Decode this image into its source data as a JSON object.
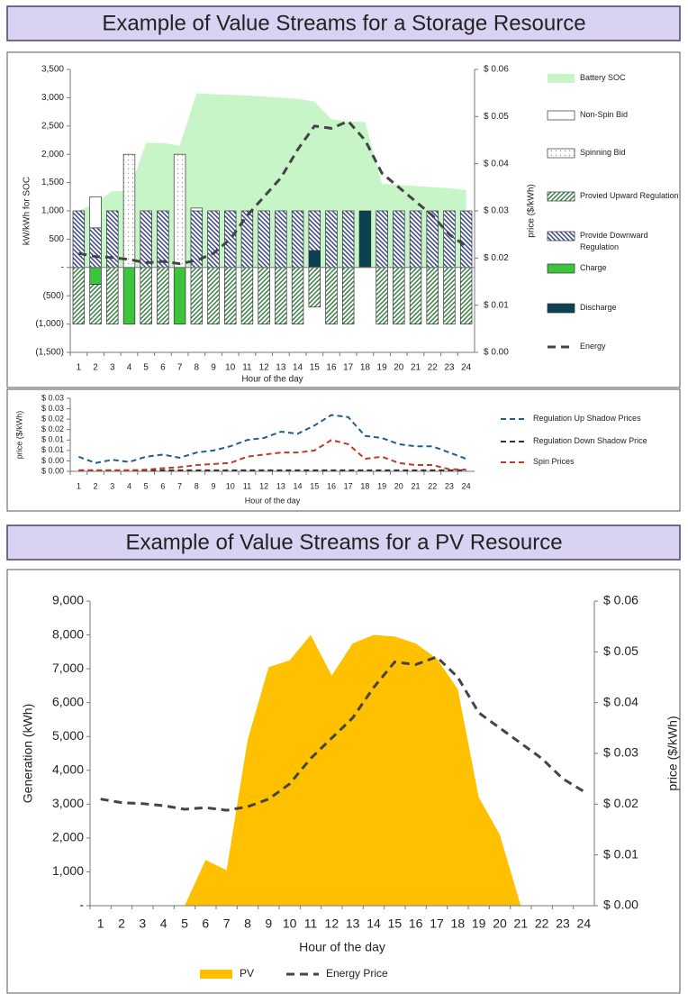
{
  "headers": [
    "Example of Value Streams for a Storage Resource",
    "Example of Value Streams for a PV Resource"
  ],
  "chart_data": [
    {
      "type": "bar",
      "stacked": true,
      "categories": [
        1,
        2,
        3,
        4,
        5,
        6,
        7,
        8,
        9,
        10,
        11,
        12,
        13,
        14,
        15,
        16,
        17,
        18,
        19,
        20,
        21,
        22,
        23,
        24
      ],
      "xlabel": "Hour of the day",
      "ylabel": "kW/kWh for SOC",
      "y2label": "price ($/kWh)",
      "legend": "right",
      "ylim": [
        -1500,
        3500
      ],
      "yticks": [
        {
          "value": -1500,
          "label": "(1,500)"
        },
        {
          "value": -1000,
          "label": "(1,000)"
        },
        {
          "value": -500,
          "label": "(500)"
        },
        {
          "value": 0,
          "label": "-"
        },
        500,
        {
          "value": 1000,
          "label": "1,000"
        },
        {
          "value": 1500,
          "label": "1,500"
        },
        {
          "value": 2000,
          "label": "2,000"
        },
        {
          "value": 2500,
          "label": "2,500"
        },
        {
          "value": 3000,
          "label": "3,000"
        },
        {
          "value": 3500,
          "label": "3,500"
        }
      ],
      "y2lim": [
        0,
        0.06
      ],
      "y2ticks": [
        {
          "value": 0,
          "label": "$ 0.00"
        },
        {
          "value": 0.01,
          "label": "$ 0.01"
        },
        {
          "value": 0.02,
          "label": "$ 0.02"
        },
        {
          "value": 0.03,
          "label": "$ 0.03"
        },
        {
          "value": 0.04,
          "label": "$ 0.04"
        },
        {
          "value": 0.05,
          "label": "$ 0.05"
        },
        {
          "value": 0.06,
          "label": "$ 0.06"
        }
      ],
      "series": [
        {
          "name": "Battery SOC",
          "type": "area",
          "fill": "solid",
          "color": "#c8f5c8",
          "values": [
            1000,
            1150,
            1350,
            1350,
            2200,
            2200,
            2150,
            3080,
            3060,
            3050,
            3040,
            3020,
            3000,
            2980,
            2930,
            2620,
            2580,
            2570,
            1480,
            1460,
            1440,
            1420,
            1400,
            1370
          ]
        },
        {
          "name": "Non-Spin Bid",
          "type": "bar",
          "fill": "solid",
          "color": "#ffffff",
          "values": [
            0,
            550,
            0,
            0,
            0,
            0,
            0,
            50,
            0,
            0,
            0,
            0,
            0,
            0,
            0,
            0,
            0,
            0,
            0,
            0,
            0,
            0,
            0,
            0
          ]
        },
        {
          "name": "Spinning Bid",
          "type": "bar",
          "fill": "dots",
          "color": "#9a9a9a",
          "values": [
            0,
            0,
            0,
            2000,
            0,
            0,
            2000,
            0,
            0,
            0,
            0,
            0,
            0,
            0,
            0,
            0,
            0,
            0,
            0,
            0,
            0,
            0,
            0,
            0
          ]
        },
        {
          "name": "Provied Upward Regulation",
          "type": "bar",
          "fill": "hatch-right",
          "color": "#2e7d3a",
          "values": [
            -1000,
            -700,
            -1000,
            0,
            -1000,
            -1000,
            0,
            -1000,
            -1000,
            -1000,
            -1000,
            -1000,
            -1000,
            -1000,
            -700,
            -1000,
            -1000,
            0,
            -1000,
            -1000,
            -1000,
            -1000,
            -1000,
            -1000
          ]
        },
        {
          "name": "Provide Downward Regulation",
          "type": "bar",
          "fill": "hatch-left",
          "color": "#2c3d8a",
          "values": [
            1000,
            700,
            1000,
            0,
            1000,
            1000,
            0,
            1000,
            1000,
            1000,
            1000,
            1000,
            1000,
            1000,
            700,
            1000,
            1000,
            0,
            1000,
            1000,
            1000,
            1000,
            1000,
            1000
          ]
        },
        {
          "name": "Charge",
          "type": "bar",
          "fill": "solid",
          "color": "#3cc43c",
          "values": [
            0,
            -300,
            0,
            -1000,
            0,
            0,
            -1000,
            0,
            0,
            0,
            0,
            0,
            0,
            0,
            0,
            0,
            0,
            0,
            0,
            0,
            0,
            0,
            0,
            0
          ]
        },
        {
          "name": "Discharge",
          "type": "bar",
          "fill": "solid",
          "color": "#0b4152",
          "values": [
            0,
            0,
            0,
            0,
            0,
            0,
            0,
            0,
            0,
            0,
            0,
            0,
            0,
            0,
            300,
            0,
            0,
            1000,
            0,
            0,
            0,
            0,
            0,
            0
          ]
        },
        {
          "name": "Energy",
          "type": "line",
          "axis": "y2",
          "dash": true,
          "color": "#444444",
          "values": [
            0.021,
            0.0203,
            0.0201,
            0.0197,
            0.019,
            0.0193,
            0.0188,
            0.0195,
            0.021,
            0.024,
            0.029,
            0.033,
            0.037,
            0.043,
            0.048,
            0.0475,
            0.049,
            0.045,
            0.038,
            0.035,
            0.032,
            0.029,
            0.025,
            0.0225
          ]
        }
      ]
    },
    {
      "type": "line",
      "categories": [
        1,
        2,
        3,
        4,
        5,
        6,
        7,
        8,
        9,
        10,
        11,
        12,
        13,
        14,
        15,
        16,
        17,
        18,
        19,
        20,
        21,
        22,
        23,
        24
      ],
      "xlabel": "Hour of the day",
      "ylabel": "price ($/kWh)",
      "legend": "right",
      "ylim": [
        0,
        0.035
      ],
      "yticks": [
        {
          "value": 0,
          "label": "$ 0.00"
        },
        {
          "value": 0.005,
          "label": "$ 0.00"
        },
        {
          "value": 0.01,
          "label": "$ 0.01"
        },
        {
          "value": 0.015,
          "label": "$ 0.01"
        },
        {
          "value": 0.02,
          "label": "$ 0.02"
        },
        {
          "value": 0.025,
          "label": "$ 0.02"
        },
        {
          "value": 0.03,
          "label": "$ 0.03"
        },
        {
          "value": 0.035,
          "label": "$ 0.03"
        }
      ],
      "series": [
        {
          "name": "Regulation Up Shadow Prices",
          "type": "line",
          "dash": true,
          "color": "#1f5f8b",
          "values": [
            0.007,
            0.004,
            0.0055,
            0.0045,
            0.007,
            0.008,
            0.0065,
            0.009,
            0.01,
            0.012,
            0.015,
            0.016,
            0.019,
            0.018,
            0.022,
            0.027,
            0.026,
            0.017,
            0.016,
            0.013,
            0.012,
            0.012,
            0.009,
            0.006
          ]
        },
        {
          "name": "Regulation Down Shadow Price",
          "type": "line",
          "dash": true,
          "color": "#333333",
          "values": [
            0.0005,
            0.0005,
            0.0005,
            0.0005,
            0.0005,
            0.0005,
            0.0005,
            0.0005,
            0.0005,
            0.0005,
            0.0005,
            0.0005,
            0.0005,
            0.0005,
            0.0005,
            0.0005,
            0.0005,
            0.0005,
            0.0005,
            0.0005,
            0.0005,
            0.0005,
            0.0005,
            0.0005
          ]
        },
        {
          "name": "Spin Prices",
          "type": "line",
          "dash": true,
          "color": "#c0392b",
          "values": [
            0.0005,
            0.0005,
            0.0005,
            0.0005,
            0.0008,
            0.0015,
            0.002,
            0.003,
            0.0035,
            0.004,
            0.007,
            0.008,
            0.009,
            0.009,
            0.01,
            0.015,
            0.013,
            0.006,
            0.007,
            0.004,
            0.003,
            0.003,
            0.001,
            0.0008
          ]
        }
      ]
    },
    {
      "type": "area",
      "categories": [
        1,
        2,
        3,
        4,
        5,
        6,
        7,
        8,
        9,
        10,
        11,
        12,
        13,
        14,
        15,
        16,
        17,
        18,
        19,
        20,
        21,
        22,
        23,
        24
      ],
      "xlabel": "Hour of the day",
      "ylabel": "Generation (kWh)",
      "y2label": "price ($/kWh)",
      "legend": "bottom",
      "ylim": [
        0,
        9000
      ],
      "yticks": [
        {
          "value": 0,
          "label": "-"
        },
        {
          "value": 1000,
          "label": "1,000"
        },
        {
          "value": 2000,
          "label": "2,000"
        },
        {
          "value": 3000,
          "label": "3,000"
        },
        {
          "value": 4000,
          "label": "4,000"
        },
        {
          "value": 5000,
          "label": "5,000"
        },
        {
          "value": 6000,
          "label": "6,000"
        },
        {
          "value": 7000,
          "label": "7,000"
        },
        {
          "value": 8000,
          "label": "8,000"
        },
        {
          "value": 9000,
          "label": "9,000"
        }
      ],
      "y2lim": [
        0,
        0.06
      ],
      "y2ticks": [
        {
          "value": 0,
          "label": "$ 0.00"
        },
        {
          "value": 0.01,
          "label": "$ 0.01"
        },
        {
          "value": 0.02,
          "label": "$ 0.02"
        },
        {
          "value": 0.03,
          "label": "$ 0.03"
        },
        {
          "value": 0.04,
          "label": "$ 0.04"
        },
        {
          "value": 0.05,
          "label": "$ 0.05"
        },
        {
          "value": 0.06,
          "label": "$ 0.06"
        }
      ],
      "series": [
        {
          "name": "PV",
          "type": "area",
          "fill": "solid",
          "color": "#ffc000",
          "values": [
            0,
            0,
            0,
            0,
            0,
            1350,
            1050,
            4900,
            7050,
            7250,
            8000,
            6800,
            7750,
            8000,
            7950,
            7750,
            7300,
            6400,
            3200,
            2100,
            0,
            0,
            0,
            0
          ]
        },
        {
          "name": "Energy Price",
          "type": "line",
          "axis": "y2",
          "dash": true,
          "color": "#444444",
          "values": [
            0.021,
            0.0203,
            0.0201,
            0.0197,
            0.019,
            0.0193,
            0.0188,
            0.0195,
            0.021,
            0.024,
            0.029,
            0.033,
            0.037,
            0.043,
            0.048,
            0.0475,
            0.049,
            0.045,
            0.038,
            0.035,
            0.032,
            0.029,
            0.025,
            0.0225
          ]
        }
      ]
    }
  ]
}
